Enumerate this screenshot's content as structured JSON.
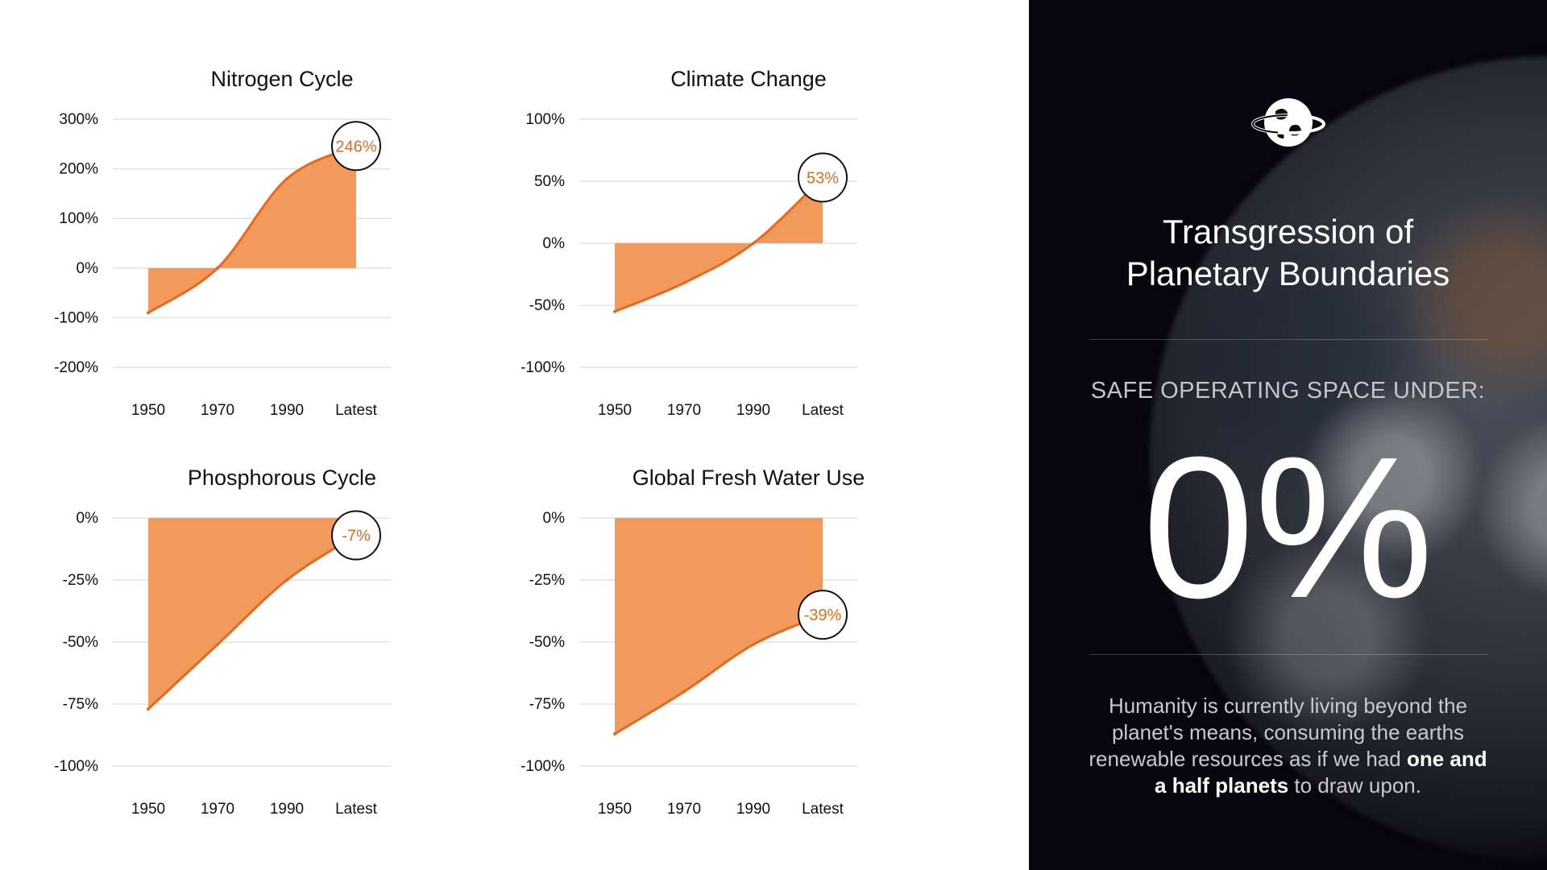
{
  "chart_data": [
    {
      "type": "area",
      "title": "Nitrogen Cycle",
      "categories": [
        "1950",
        "1970",
        "1990",
        "Latest"
      ],
      "values": [
        -90,
        0,
        180,
        246
      ],
      "highlight_label": "246%",
      "yticks": [
        "300%",
        "200%",
        "100%",
        "0%",
        "-100%",
        "-200%"
      ],
      "ylim": [
        -200,
        300
      ],
      "grid": true
    },
    {
      "type": "area",
      "title": "Climate Change",
      "categories": [
        "1950",
        "1970",
        "1990",
        "Latest"
      ],
      "values": [
        -55,
        -32,
        0,
        53
      ],
      "highlight_label": "53%",
      "yticks": [
        "100%",
        "50%",
        "0%",
        "-50%",
        "-100%"
      ],
      "ylim": [
        -100,
        100
      ],
      "grid": true
    },
    {
      "type": "area",
      "title": "Phosphorous Cycle",
      "categories": [
        "1950",
        "1970",
        "1990",
        "Latest"
      ],
      "values": [
        -77,
        -51,
        -25,
        -7
      ],
      "highlight_label": "-7%",
      "yticks": [
        "0%",
        "-25%",
        "-50%",
        "-75%",
        "-100%"
      ],
      "ylim": [
        -100,
        0
      ],
      "grid": true
    },
    {
      "type": "area",
      "title": "Global Fresh Water Use",
      "categories": [
        "1950",
        "1970",
        "1990",
        "Latest"
      ],
      "values": [
        -87,
        -70,
        -51,
        -39
      ],
      "highlight_label": "-39%",
      "yticks": [
        "0%",
        "-25%",
        "-50%",
        "-75%",
        "-100%"
      ],
      "ylim": [
        -100,
        0
      ],
      "grid": true
    }
  ],
  "colors": {
    "area_fill": "#f29a5b",
    "line": "#e8691c",
    "label_text": "#e8691c",
    "grid": "#e2e2e2",
    "axis_text": "#111111"
  },
  "sidebar": {
    "title_line1": "Transgression of",
    "title_line2": "Planetary Boundaries",
    "subtitle": "SAFE OPERATING SPACE UNDER:",
    "big_value": "0%",
    "body_prefix": "Humanity is currently living beyond the planet's means, consuming the earths renewable resources as if we had ",
    "body_bold": "one and a half planets",
    "body_suffix": " to draw upon.",
    "icon": "globe-with-ring-icon"
  }
}
